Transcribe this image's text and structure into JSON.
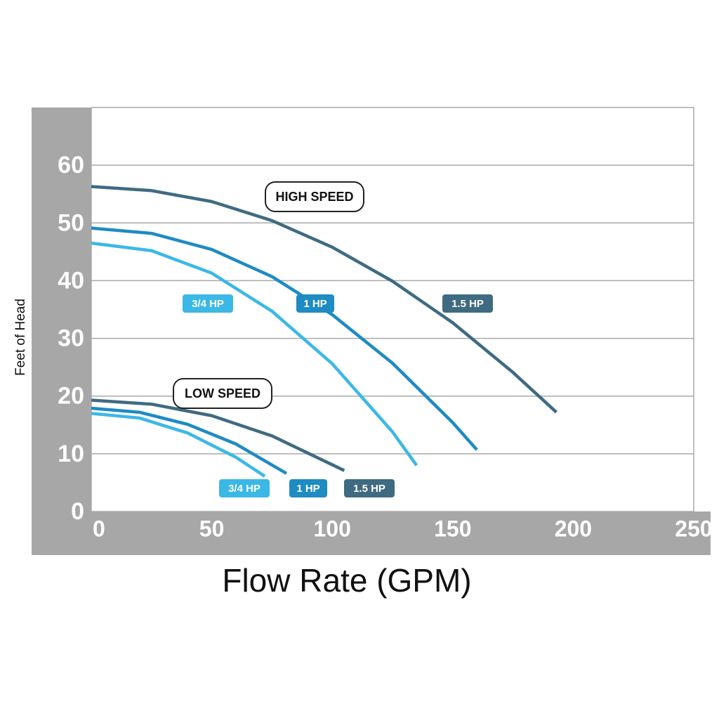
{
  "chart_data": {
    "type": "line",
    "x_label": "Flow Rate (GPM)",
    "y_label": "Feet of Head",
    "annotations": [
      "HIGH SPEED",
      "LOW SPEED"
    ],
    "xlim": [
      0,
      250
    ],
    "xticks": [
      0,
      50,
      100,
      150,
      200,
      250
    ],
    "ylim": [
      0,
      70
    ],
    "yticks": [
      0,
      10,
      20,
      30,
      40,
      50,
      60
    ],
    "grid": true,
    "series": [
      {
        "name": "3/4 HP",
        "color": "#3bb8e6",
        "x": [
          0,
          25,
          50,
          75,
          100,
          125,
          135
        ],
        "values": [
          46.5,
          45.2,
          41.3,
          34.7,
          25.6,
          13.8,
          8
        ]
      },
      {
        "name": "1 HP",
        "color": "#1e8bc3",
        "x": [
          0,
          25,
          50,
          75,
          100,
          125,
          150,
          160
        ],
        "values": [
          49.1,
          48.2,
          45.4,
          40.7,
          34.1,
          25.7,
          15.4,
          10.7
        ]
      },
      {
        "name": "1.5 HP",
        "color": "#3f6b82",
        "x": [
          0,
          25,
          50,
          75,
          100,
          125,
          150,
          175,
          193
        ],
        "values": [
          56.3,
          55.6,
          53.7,
          50.4,
          45.8,
          39.9,
          32.7,
          24.1,
          17.2
        ]
      },
      {
        "name": "3/4 HP",
        "color": "#3bb8e6",
        "x": [
          0,
          20,
          40,
          60,
          72
        ],
        "values": [
          17,
          16.2,
          13.6,
          9.4,
          6.1
        ]
      },
      {
        "name": "1 HP",
        "color": "#1e8bc3",
        "x": [
          0,
          20,
          40,
          60,
          81
        ],
        "values": [
          17.9,
          17.2,
          15.1,
          11.7,
          6.6
        ]
      },
      {
        "name": "1.5 HP",
        "color": "#3f6b82",
        "x": [
          0,
          25,
          50,
          75,
          105
        ],
        "values": [
          19.3,
          18.6,
          16.6,
          13.1,
          7.1
        ]
      }
    ]
  }
}
